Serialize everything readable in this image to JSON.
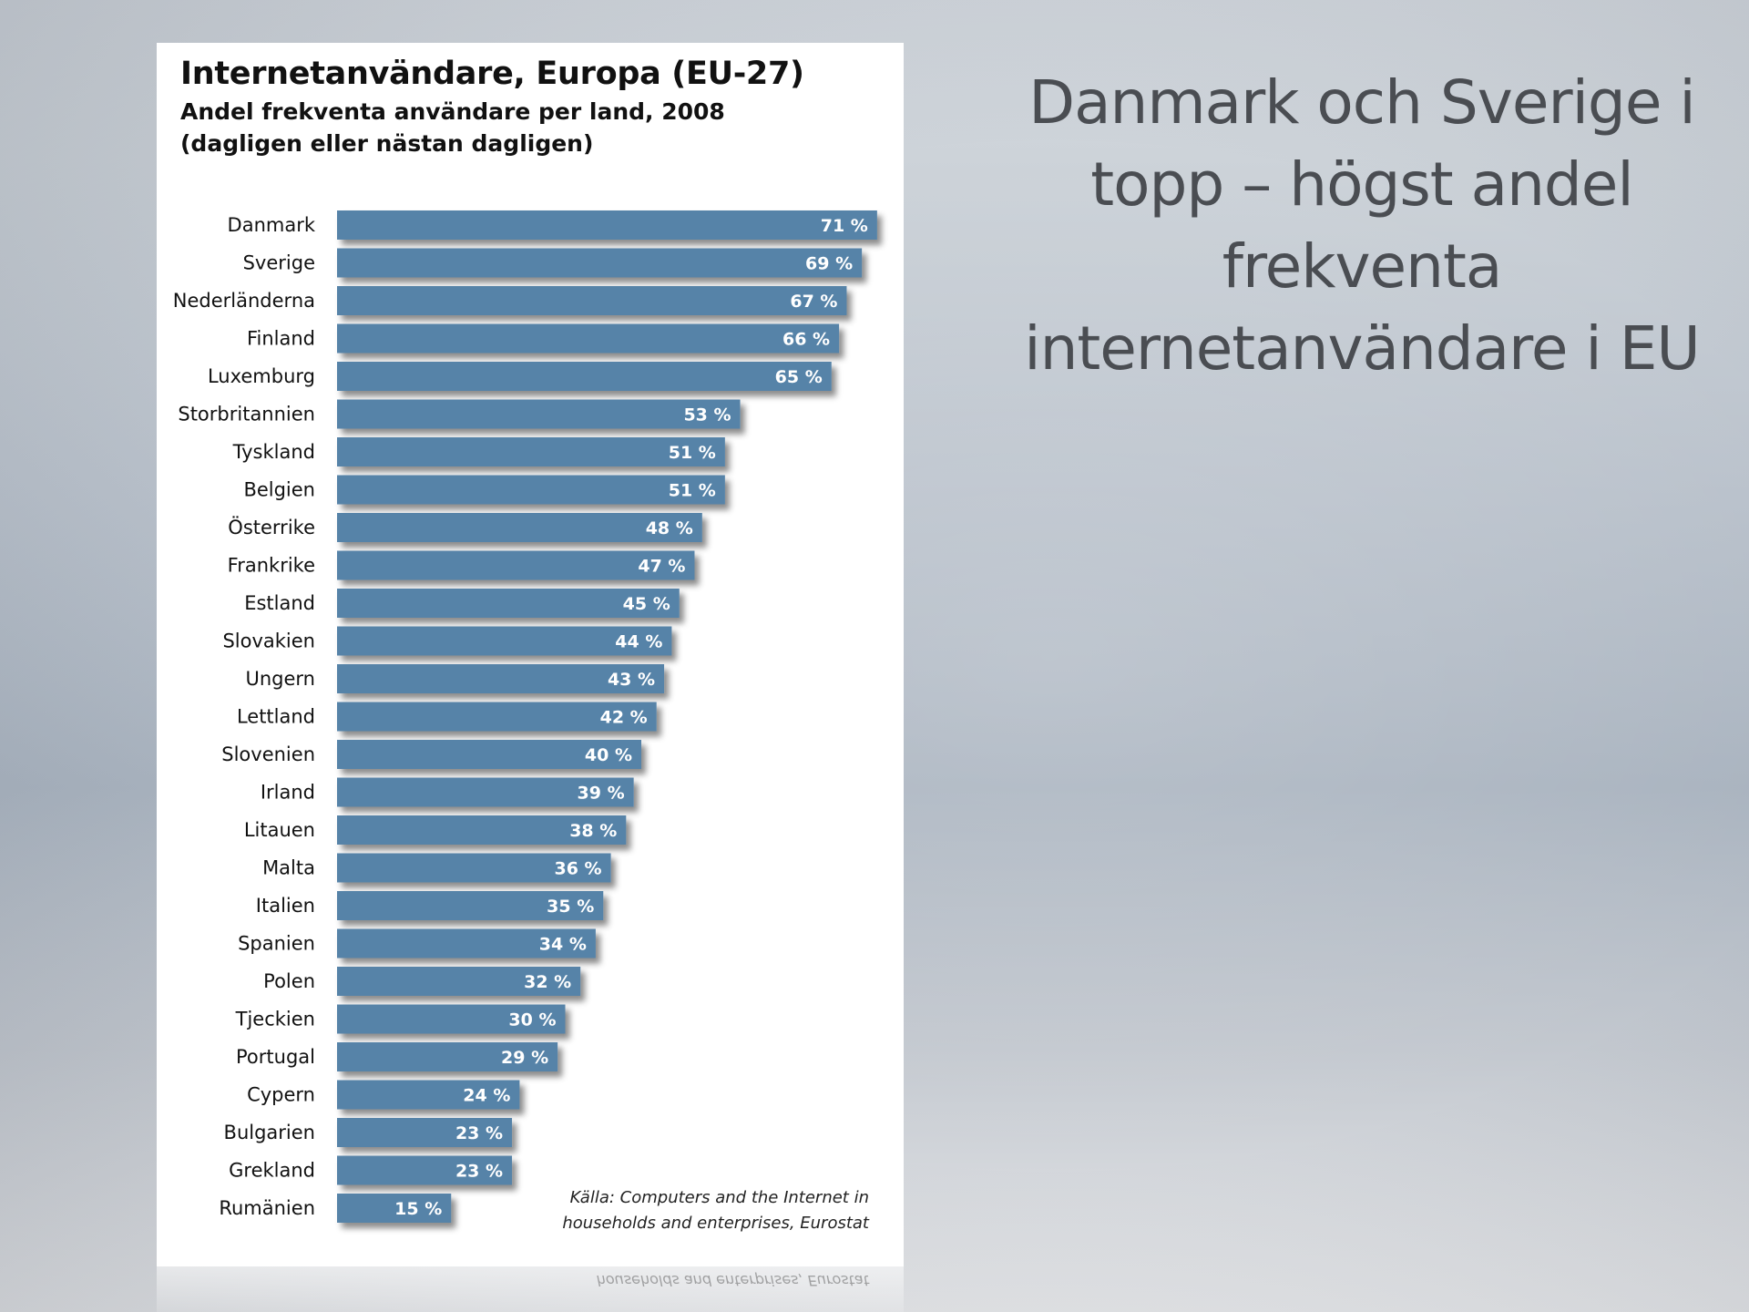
{
  "slide": {
    "heading": "Danmark och Sverige i topp – högst andel frekventa internetanvändare i EU"
  },
  "chart": {
    "source_line1": "Källa: Computers and the Internet in",
    "source_line2": "households and enterprises, Eurostat",
    "reflection_text": "households and enterprises, Eurostat"
  },
  "chart_data": {
    "type": "bar",
    "orientation": "horizontal",
    "title": "Internetanvändare, Europa (EU-27)",
    "subtitle_line1": "Andel frekventa användare per land, 2008",
    "subtitle_line2": "(dagligen eller nästan dagligen)",
    "value_suffix": " %",
    "bar_color": "#5683a8",
    "categories": [
      "Danmark",
      "Sverige",
      "Nederländerna",
      "Finland",
      "Luxemburg",
      "Storbritannien",
      "Tyskland",
      "Belgien",
      "Österrike",
      "Frankrike",
      "Estland",
      "Slovakien",
      "Ungern",
      "Lettland",
      "Slovenien",
      "Irland",
      "Litauen",
      "Malta",
      "Italien",
      "Spanien",
      "Polen",
      "Tjeckien",
      "Portugal",
      "Cypern",
      "Bulgarien",
      "Grekland",
      "Rumänien"
    ],
    "values": [
      71,
      69,
      67,
      66,
      65,
      53,
      51,
      51,
      48,
      47,
      45,
      44,
      43,
      42,
      40,
      39,
      38,
      36,
      35,
      34,
      32,
      30,
      29,
      24,
      23,
      23,
      15
    ],
    "grid": false,
    "legend": "none"
  }
}
